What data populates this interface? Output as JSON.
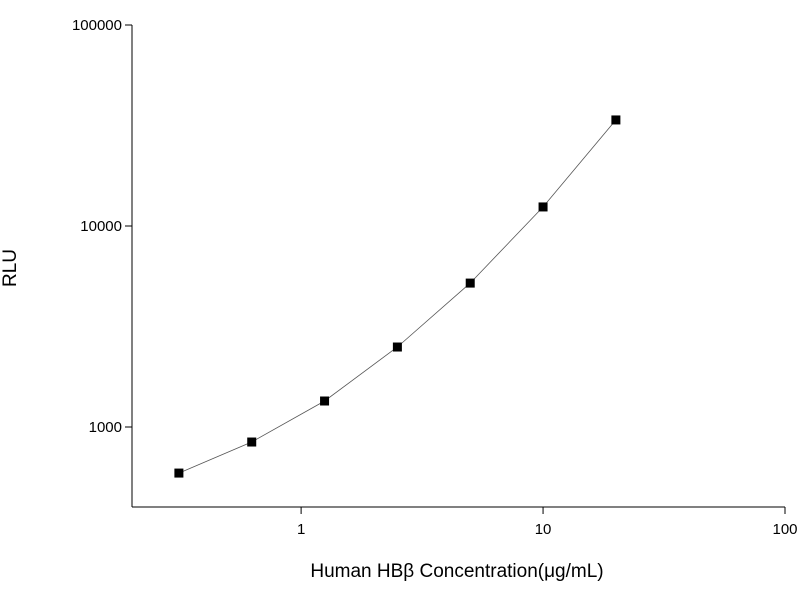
{
  "chart_data": {
    "type": "scatter-line",
    "x_label": "Human HBβ  Concentration(μg/mL)",
    "y_label": "RLU",
    "x": [
      0.3125,
      0.625,
      1.25,
      2.5,
      5,
      10,
      20
    ],
    "series": [
      {
        "color": "#000000",
        "values": [
          590,
          842,
          1347,
          2500,
          5200,
          12440,
          33700
        ]
      }
    ],
    "xlim": [
      0.2,
      100
    ],
    "xticks": [
      1,
      10,
      100
    ],
    "ylim": [
      400,
      100000
    ],
    "yticks": [
      1000,
      10000,
      100000
    ],
    "xscale": "log",
    "yscale": "log",
    "grid": false
  }
}
